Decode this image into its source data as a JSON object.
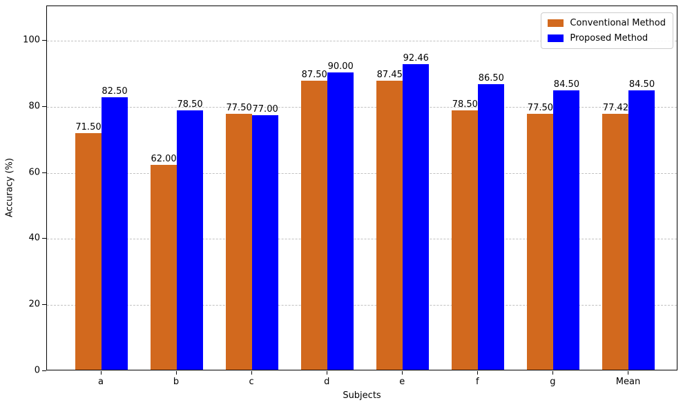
{
  "chart_data": {
    "type": "bar",
    "title": "",
    "xlabel": "Subjects",
    "ylabel": "Accuracy (%)",
    "categories": [
      "a",
      "b",
      "c",
      "d",
      "e",
      "f",
      "g",
      "Mean"
    ],
    "series": [
      {
        "name": "Conventional Method",
        "color": "#D2691E",
        "values": [
          71.5,
          62.0,
          77.5,
          87.5,
          87.45,
          78.5,
          77.5,
          77.42
        ]
      },
      {
        "name": "Proposed Method",
        "color": "#0000FF",
        "values": [
          82.5,
          78.5,
          77.0,
          90.0,
          92.46,
          86.5,
          84.5,
          84.5
        ]
      }
    ],
    "bar_value_labels": {
      "Conventional Method": [
        "71.50",
        "62.00",
        "77.50",
        "87.50",
        "87.45",
        "78.50",
        "77.50",
        "77.42"
      ],
      "Proposed Method": [
        "82.50",
        "78.50",
        "77.00",
        "90.00",
        "92.46",
        "86.50",
        "84.50",
        "84.50"
      ]
    },
    "yticks": [
      "0",
      "20",
      "40",
      "60",
      "80",
      "100"
    ],
    "ytick_values": [
      0,
      20,
      40,
      60,
      80,
      100
    ],
    "ylim": [
      0,
      110.4
    ],
    "grid": "horizontal dashed gray lines at yticks",
    "gridline_color": "#c0c0c0",
    "legend_position": "upper right",
    "legend_entries": [
      "Conventional Method",
      "Proposed Method"
    ]
  }
}
